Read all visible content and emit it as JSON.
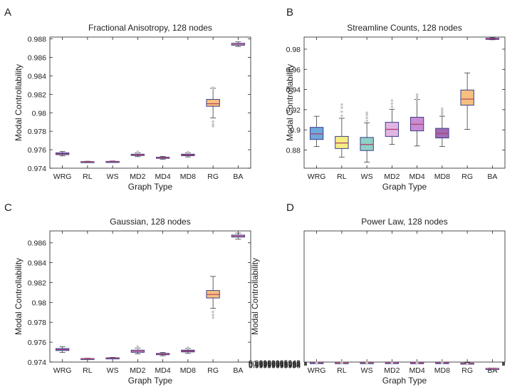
{
  "panels": [
    {
      "letter": "A"
    },
    {
      "letter": "B"
    },
    {
      "letter": "C"
    },
    {
      "letter": "D"
    }
  ],
  "colors": {
    "WRG": "#6fa8dc",
    "RL": "#f5ee84",
    "WS": "#8fd0c4",
    "MD2": "#e2b5e3",
    "MD4": "#c98bd2",
    "MD8": "#9f6bb4",
    "RG": "#f7c07e",
    "BA": "#ffffff",
    "outlier": "#c8c8c8"
  },
  "chart_data": [
    {
      "type": "box",
      "title": "Fractional Anisotropy, 128 nodes",
      "xlabel": "Graph Type",
      "ylabel": "Modal Controllability",
      "ylim": [
        0.974,
        0.9882
      ],
      "yticks": [
        0.974,
        0.976,
        0.978,
        0.98,
        0.982,
        0.984,
        0.986,
        0.988
      ],
      "yticklabels": [
        "0.974",
        "0.976",
        "0.978",
        "0.98",
        "0.982",
        "0.984",
        "0.986",
        "0.988"
      ],
      "categories": [
        "WRG",
        "RL",
        "WS",
        "MD2",
        "MD4",
        "MD8",
        "RG",
        "BA"
      ],
      "boxes": [
        {
          "q1": 0.97547,
          "median": 0.97556,
          "q3": 0.97566,
          "lo": 0.97533,
          "hi": 0.97582,
          "outliers": []
        },
        {
          "q1": 0.97466,
          "median": 0.97469,
          "q3": 0.97472,
          "lo": 0.97462,
          "hi": 0.97476,
          "outliers": []
        },
        {
          "q1": 0.97468,
          "median": 0.97471,
          "q3": 0.97474,
          "lo": 0.97464,
          "hi": 0.97478,
          "outliers": []
        },
        {
          "q1": 0.97537,
          "median": 0.97544,
          "q3": 0.97552,
          "lo": 0.97525,
          "hi": 0.97566,
          "outliers": [
            0.97572,
            0.97578
          ]
        },
        {
          "q1": 0.97508,
          "median": 0.97513,
          "q3": 0.97519,
          "lo": 0.97498,
          "hi": 0.97528,
          "outliers": []
        },
        {
          "q1": 0.97535,
          "median": 0.97543,
          "q3": 0.97552,
          "lo": 0.97522,
          "hi": 0.97568,
          "outliers": [
            0.97574
          ]
        },
        {
          "q1": 0.9807,
          "median": 0.98098,
          "q3": 0.98145,
          "lo": 0.97945,
          "hi": 0.98265,
          "outliers": [
            0.97905,
            0.97875,
            0.97855,
            0.98272
          ]
        },
        {
          "q1": 0.98732,
          "median": 0.98743,
          "q3": 0.98752,
          "lo": 0.98718,
          "hi": 0.98768,
          "outliers": []
        }
      ]
    },
    {
      "type": "box",
      "title": "Streamline Counts, 128 nodes",
      "xlabel": "Graph Type",
      "ylabel": "Modal Controllability",
      "ylim": [
        0.862,
        0.992
      ],
      "yticks": [
        0.88,
        0.9,
        0.92,
        0.94,
        0.96,
        0.98
      ],
      "yticklabels": [
        "0.88",
        "0.9",
        "0.92",
        "0.94",
        "0.96",
        "0.98"
      ],
      "categories": [
        "WRG",
        "RL",
        "WS",
        "MD2",
        "MD4",
        "MD8",
        "RG",
        "BA"
      ],
      "boxes": [
        {
          "q1": 0.8905,
          "median": 0.896,
          "q3": 0.9025,
          "lo": 0.8835,
          "hi": 0.9135,
          "outliers": []
        },
        {
          "q1": 0.8815,
          "median": 0.887,
          "q3": 0.8935,
          "lo": 0.873,
          "hi": 0.9115,
          "outliers": [
            0.914,
            0.918,
            0.922,
            0.925
          ]
        },
        {
          "q1": 0.8795,
          "median": 0.8855,
          "q3": 0.8925,
          "lo": 0.868,
          "hi": 0.907,
          "outliers": [
            0.909,
            0.912,
            0.915,
            0.917
          ]
        },
        {
          "q1": 0.8935,
          "median": 0.9005,
          "q3": 0.9075,
          "lo": 0.8855,
          "hi": 0.9205,
          "outliers": [
            0.923,
            0.926,
            0.929
          ]
        },
        {
          "q1": 0.899,
          "median": 0.9055,
          "q3": 0.9125,
          "lo": 0.884,
          "hi": 0.93,
          "outliers": [
            0.931,
            0.933,
            0.935
          ]
        },
        {
          "q1": 0.892,
          "median": 0.8965,
          "q3": 0.9015,
          "lo": 0.8835,
          "hi": 0.9135,
          "outliers": [
            0.915,
            0.917,
            0.919,
            0.921
          ]
        },
        {
          "q1": 0.9245,
          "median": 0.9305,
          "q3": 0.9395,
          "lo": 0.9005,
          "hi": 0.9565,
          "outliers": []
        },
        {
          "q1": 0.9898,
          "median": 0.9903,
          "q3": 0.9908,
          "lo": 0.9893,
          "hi": 0.9913,
          "outliers": []
        }
      ]
    },
    {
      "type": "box",
      "title": "Gaussian, 128 nodes",
      "xlabel": "Graph Type",
      "ylabel": "Modal Controllability",
      "ylim": [
        0.974,
        0.9872
      ],
      "yticks": [
        0.974,
        0.976,
        0.978,
        0.98,
        0.982,
        0.984,
        0.986
      ],
      "yticklabels": [
        "0.974",
        "0.976",
        "0.978",
        "0.98",
        "0.982",
        "0.984",
        "0.986"
      ],
      "categories": [
        "WRG",
        "RL",
        "WS",
        "MD2",
        "MD4",
        "MD8",
        "RG",
        "BA"
      ],
      "boxes": [
        {
          "q1": 0.97516,
          "median": 0.97526,
          "q3": 0.97536,
          "lo": 0.97498,
          "hi": 0.97554,
          "outliers": []
        },
        {
          "q1": 0.97432,
          "median": 0.97434,
          "q3": 0.97436,
          "lo": 0.9743,
          "hi": 0.97439,
          "outliers": []
        },
        {
          "q1": 0.97437,
          "median": 0.9744,
          "q3": 0.97443,
          "lo": 0.97433,
          "hi": 0.97447,
          "outliers": []
        },
        {
          "q1": 0.97498,
          "median": 0.97508,
          "q3": 0.9752,
          "lo": 0.97482,
          "hi": 0.97542,
          "outliers": [
            0.9755,
            0.97556
          ]
        },
        {
          "q1": 0.97474,
          "median": 0.9748,
          "q3": 0.97487,
          "lo": 0.97464,
          "hi": 0.97497,
          "outliers": []
        },
        {
          "q1": 0.97502,
          "median": 0.97511,
          "q3": 0.9752,
          "lo": 0.97487,
          "hi": 0.97537,
          "outliers": [
            0.97545
          ]
        },
        {
          "q1": 0.98045,
          "median": 0.9808,
          "q3": 0.9812,
          "lo": 0.9794,
          "hi": 0.98262,
          "outliers": [
            0.97905,
            0.97875,
            0.97848
          ]
        },
        {
          "q1": 0.98658,
          "median": 0.98668,
          "q3": 0.98678,
          "lo": 0.98638,
          "hi": 0.98698,
          "outliers": []
        }
      ]
    },
    {
      "type": "box",
      "title": "Power Law, 128 nodes",
      "xlabel": "Graph Type",
      "ylabel": "Modal Controllability",
      "ylim": [
        0.99999995947,
        0.99999995569
      ],
      "yticks": [
        0.99999995948,
        0.9999999595,
        0.99999995952,
        0.99999995954,
        0.99999995956
      ],
      "yticklabels": [
        "0.99999995948",
        "0.9999999595",
        "0.99999995952",
        "0.99999995954",
        "0.99999995956"
      ],
      "categories": [
        "WRG",
        "RL",
        "WS",
        "MD2",
        "MD4",
        "MD8",
        "RG",
        "BA"
      ],
      "boxes": [
        {
          "q1": 0.9999999594837,
          "median": 0.9999999594866,
          "q3": 0.9999999594895,
          "lo": 0.9999999594762,
          "hi": 0.9999999594972,
          "outliers": [
            0.999999959499,
            0.9999999595005,
            0.999999959502,
            0.9999999595035,
            0.999999959505
          ]
        },
        {
          "q1": 0.9999999594858,
          "median": 0.999999959488,
          "q3": 0.9999999594902,
          "lo": 0.9999999594792,
          "hi": 0.9999999594958,
          "outliers": [
            0.9999999594978,
            0.9999999595,
            0.999999959502,
            0.999999959504
          ]
        },
        {
          "q1": 0.9999999594852,
          "median": 0.9999999594872,
          "q3": 0.9999999594895,
          "lo": 0.9999999594792,
          "hi": 0.9999999594948,
          "outliers": [
            0.9999999594968,
            0.999999959499,
            0.999999959501,
            0.999999959503,
            0.9999999595048
          ]
        },
        {
          "q1": 0.999999959484,
          "median": 0.9999999594872,
          "q3": 0.9999999594908,
          "lo": 0.9999999594772,
          "hi": 0.9999999594988,
          "outliers": [
            0.9999999595008,
            0.999999959503,
            0.999999959505,
            0.999999959507
          ]
        },
        {
          "q1": 0.999999959485,
          "median": 0.9999999594878,
          "q3": 0.9999999594912,
          "lo": 0.9999999594782,
          "hi": 0.9999999594968,
          "outliers": [
            0.9999999594988,
            0.999999959501,
            0.999999959503,
            0.999999959505
          ]
        },
        {
          "q1": 0.9999999594832,
          "median": 0.9999999594862,
          "q3": 0.999999959489,
          "lo": 0.9999999594768,
          "hi": 0.9999999594958,
          "outliers": [
            0.9999999594978,
            0.9999999594995,
            0.9999999595012
          ]
        },
        {
          "q1": 0.9999999594988,
          "median": 0.9999999595048,
          "q3": 0.9999999595132,
          "lo": 0.9999999594862,
          "hi": 0.9999999595222,
          "outliers": [
            0.999999959526
          ]
        },
        {
          "q1": 0.9999999596522,
          "median": 0.9999999596552,
          "q3": 0.9999999596582,
          "lo": 0.9999999596452,
          "hi": 0.999999959665,
          "outliers": []
        }
      ]
    }
  ]
}
